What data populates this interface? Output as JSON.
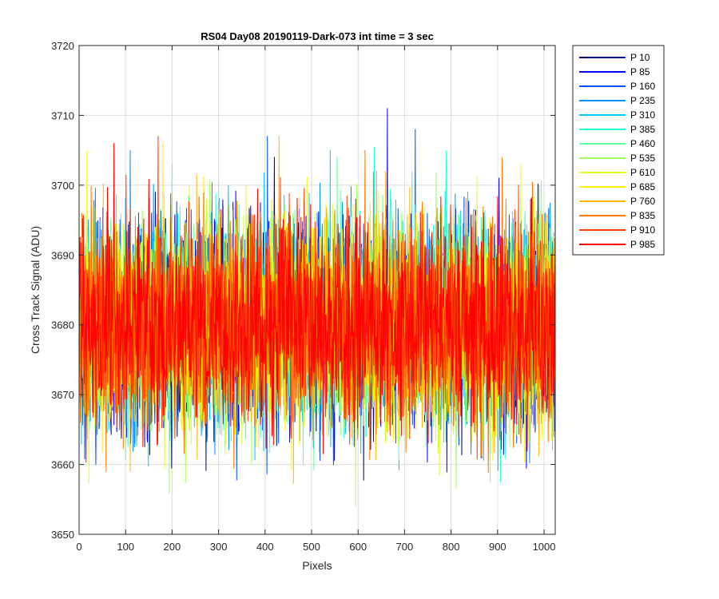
{
  "chart_data": {
    "type": "line",
    "title": "RS04 Day08 20190119-Dark-073 int time = 3 sec",
    "xlabel": "Pixels",
    "ylabel": "Cross Track Signal (ADU)",
    "xlim": [
      0,
      1024
    ],
    "ylim": [
      3650,
      3720
    ],
    "xticks": [
      0,
      100,
      200,
      300,
      400,
      500,
      600,
      700,
      800,
      900,
      1000
    ],
    "yticks": [
      3650,
      3660,
      3670,
      3680,
      3690,
      3700,
      3710,
      3720
    ],
    "grid": true,
    "legend_position": "outside-right-top",
    "noise_profile": {
      "mean": 3680,
      "typical_min": 3653,
      "typical_max": 3708
    },
    "series": [
      {
        "name": "P 10",
        "color": "#00008F",
        "peak": {
          "x": 420,
          "y": 3704
        }
      },
      {
        "name": "P 85",
        "color": "#0000FF",
        "peak": {
          "x": 663,
          "y": 3711
        }
      },
      {
        "name": "P 160",
        "color": "#0050FF",
        "peak": {
          "x": 405,
          "y": 3707
        }
      },
      {
        "name": "P 235",
        "color": "#0090FF",
        "peak": {
          "x": 110,
          "y": 3705
        }
      },
      {
        "name": "P 310",
        "color": "#00C8FF",
        "peak": {
          "x": 540,
          "y": 3705
        }
      },
      {
        "name": "P 385",
        "color": "#20FFE0",
        "peak": {
          "x": 790,
          "y": 3705
        }
      },
      {
        "name": "P 460",
        "color": "#60FFA0",
        "peak": {
          "x": 200,
          "y": 3703
        }
      },
      {
        "name": "P 535",
        "color": "#A0FF60",
        "peak": {
          "x": 300,
          "y": 3701
        }
      },
      {
        "name": "P 610",
        "color": "#D8FF28",
        "peak": {
          "x": 950,
          "y": 3703
        }
      },
      {
        "name": "P 685",
        "color": "#FFF000",
        "peak": {
          "x": 180,
          "y": 3706
        }
      },
      {
        "name": "P 760",
        "color": "#FFB800",
        "peak": {
          "x": 640,
          "y": 3702
        }
      },
      {
        "name": "P 835",
        "color": "#FF7800",
        "peak": {
          "x": 615,
          "y": 3705
        }
      },
      {
        "name": "P 910",
        "color": "#FF3C00",
        "peak": {
          "x": 170,
          "y": 3707
        }
      },
      {
        "name": "P 985",
        "color": "#FF0000",
        "peak": {
          "x": 75,
          "y": 3706
        }
      }
    ]
  }
}
